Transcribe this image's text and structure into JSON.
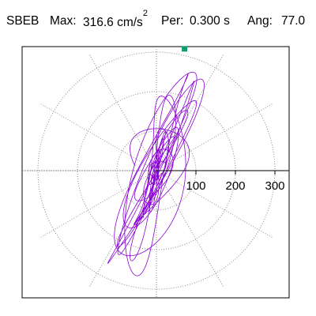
{
  "header": {
    "station": "SBEB",
    "max_label": "Max:",
    "max_value": "316.6 cm/s",
    "max_exp": "2",
    "per_label": "Per:",
    "per_value": "0.300 s",
    "ang_label": "Ang:",
    "ang_value": "77.0"
  },
  "chart_data": {
    "type": "scatter",
    "subtype": "polar-orbit",
    "radial_ticks": [
      "100",
      "200",
      "300"
    ],
    "radial_tick_values": [
      100,
      200,
      300
    ],
    "r_max": 300,
    "angle_deg": 77.0,
    "peak_value": 316.6,
    "colors": {
      "trace": "#8a05d2",
      "peak_marker": "#109c6c",
      "grid": "#8a8a8a",
      "axis": "#000000"
    },
    "grid": true
  }
}
